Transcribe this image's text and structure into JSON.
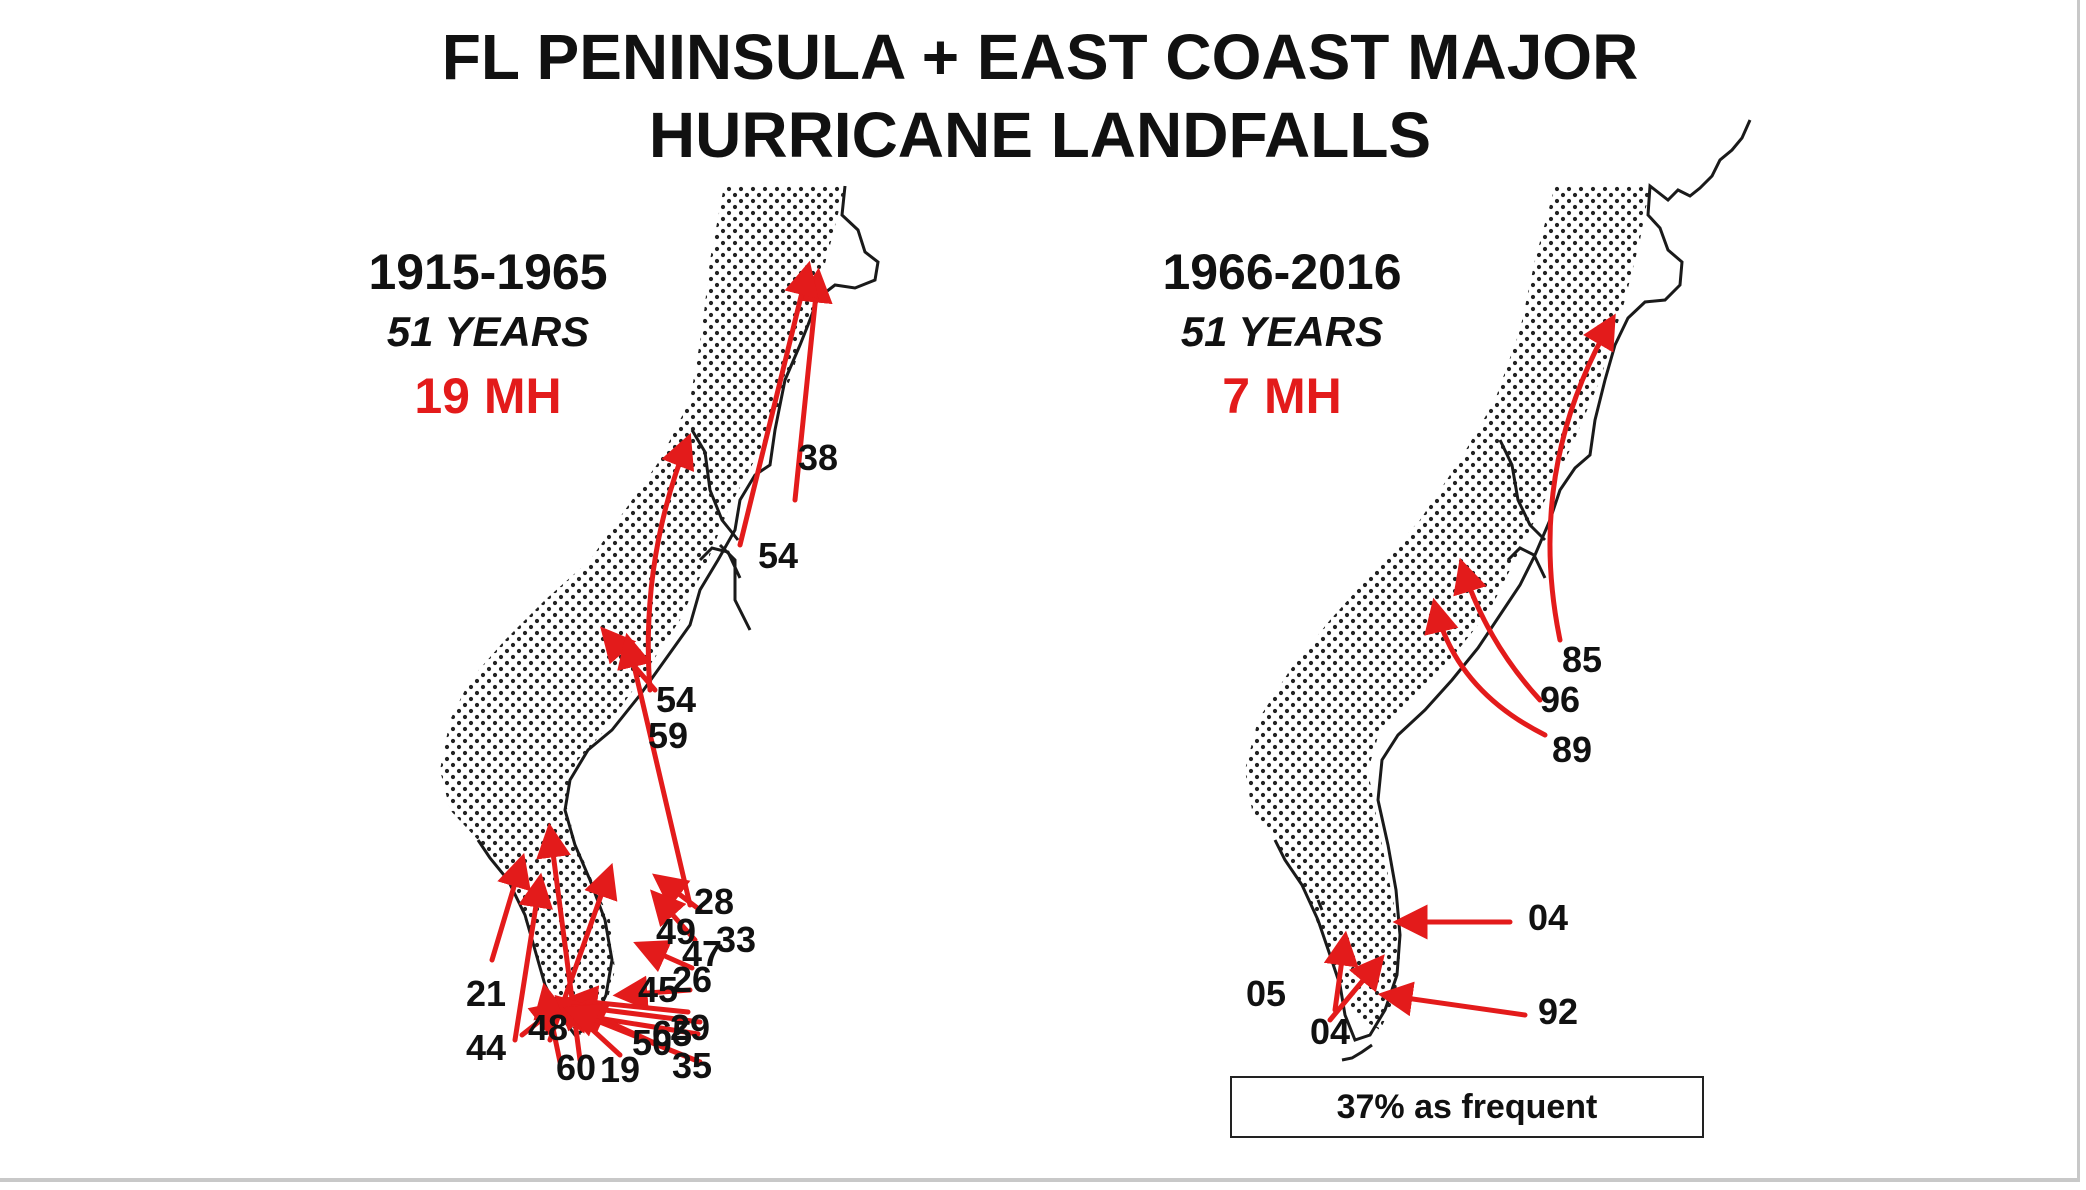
{
  "title": {
    "line1": "FL PENINSULA + EAST COAST MAJOR",
    "line2": "HURRICANE LANDFALLS"
  },
  "colors": {
    "accent": "#e31b1b",
    "text": "#111111",
    "coast": "#1a1a1a",
    "stipple": "#222222"
  },
  "panels": [
    {
      "years": "1915-1965",
      "span": "51 YEARS",
      "count": "19 MH",
      "labels": [
        "38",
        "54",
        "54",
        "59",
        "28",
        "49",
        "33",
        "47",
        "26",
        "45",
        "21",
        "29",
        "65",
        "48",
        "50",
        "44",
        "35",
        "60",
        "19"
      ]
    },
    {
      "years": "1966-2016",
      "span": "51 YEARS",
      "count": "7 MH",
      "labels": [
        "85",
        "96",
        "89",
        "04",
        "05",
        "04",
        "92"
      ]
    }
  ],
  "note": "37% as frequent"
}
